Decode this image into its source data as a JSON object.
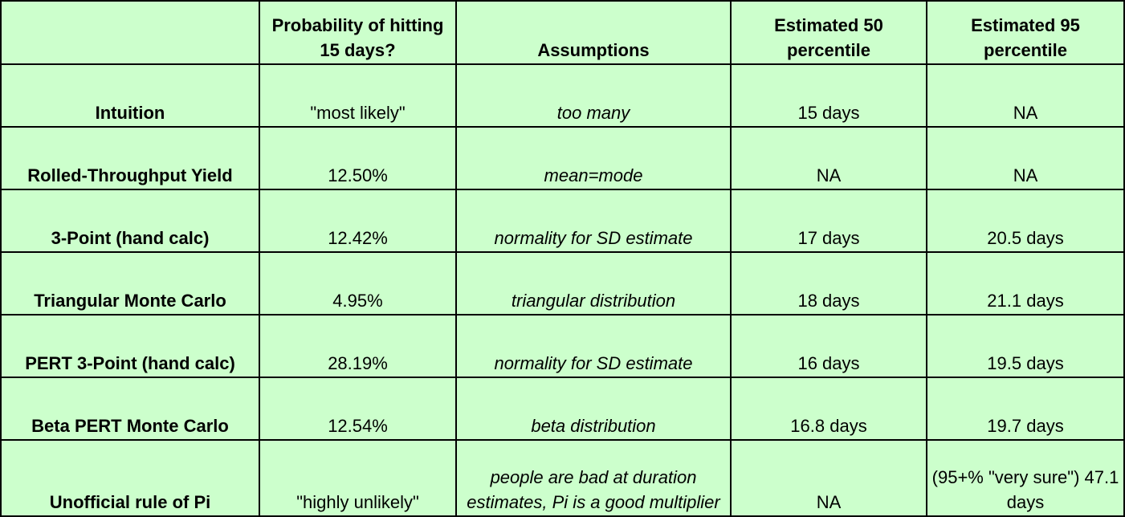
{
  "colors": {
    "cell_background": "#ccffcc",
    "grid": "#000000"
  },
  "headers": [
    "",
    "Probability of hitting 15 days?",
    "Assumptions",
    "Estimated 50 percentile",
    "Estimated 95 percentile"
  ],
  "rows": [
    {
      "method": "Intuition",
      "probability": "\"most likely\"",
      "assumptions": "too many",
      "p50": "15 days",
      "p95": "NA"
    },
    {
      "method": "Rolled-Throughput Yield",
      "probability": "12.50%",
      "assumptions": "mean=mode",
      "p50": "NA",
      "p95": "NA"
    },
    {
      "method": "3-Point (hand calc)",
      "probability": "12.42%",
      "assumptions": "normality for SD estimate",
      "p50": "17 days",
      "p95": "20.5 days"
    },
    {
      "method": "Triangular Monte Carlo",
      "probability": "4.95%",
      "assumptions": "triangular distribution",
      "p50": "18 days",
      "p95": "21.1 days"
    },
    {
      "method": "PERT 3-Point (hand calc)",
      "probability": "28.19%",
      "assumptions": "normality for SD estimate",
      "p50": "16 days",
      "p95": "19.5 days"
    },
    {
      "method": "Beta PERT Monte Carlo",
      "probability": "12.54%",
      "assumptions": "beta distribution",
      "p50": "16.8 days",
      "p95": "19.7 days"
    },
    {
      "method": "Unofficial rule of Pi",
      "probability": "\"highly unlikely\"",
      "assumptions": "people are bad at duration estimates, Pi is a good multiplier",
      "p50": "NA",
      "p95": "(95+% \"very sure\") 47.1 days"
    }
  ]
}
